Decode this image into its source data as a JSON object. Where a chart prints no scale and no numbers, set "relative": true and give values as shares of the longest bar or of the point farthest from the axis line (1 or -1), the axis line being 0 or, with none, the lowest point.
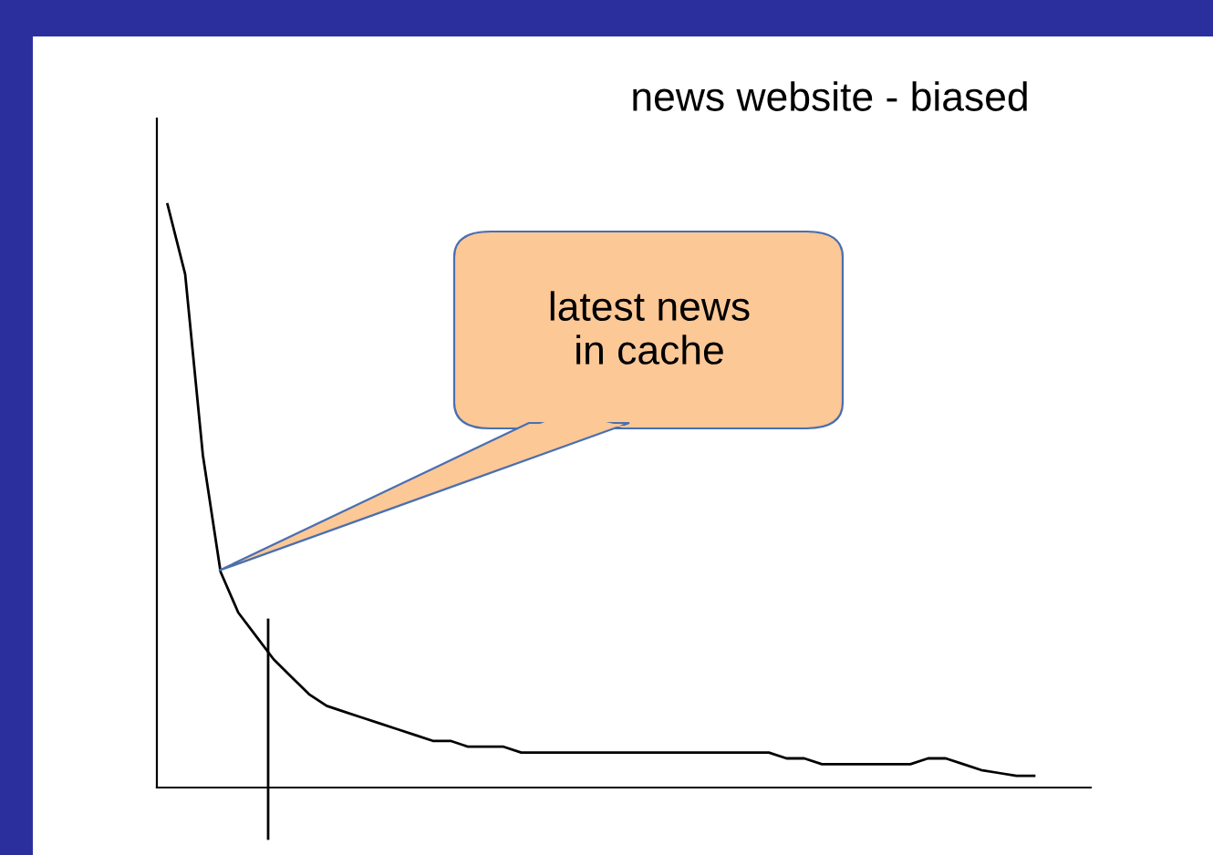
{
  "chart_data": {
    "type": "line",
    "title": "news website - biased",
    "relative": true,
    "categories": [
      null,
      null,
      null,
      null,
      null,
      null,
      null,
      null,
      null,
      null,
      null,
      null,
      null,
      null,
      null,
      null,
      null,
      null,
      null,
      null,
      null,
      null,
      null,
      null,
      null,
      null,
      null,
      null,
      null,
      null,
      null,
      null,
      null,
      null,
      null,
      null,
      null,
      null,
      null,
      null,
      null,
      null,
      null,
      null,
      null,
      null,
      null,
      null,
      null,
      null
    ],
    "series": [
      {
        "color": "#000000",
        "values": [
          1.0,
          0.88,
          0.57,
          0.37,
          0.3,
          0.26,
          0.22,
          0.19,
          0.16,
          0.14,
          0.13,
          0.12,
          0.11,
          0.1,
          0.09,
          0.08,
          0.08,
          0.07,
          0.07,
          0.07,
          0.06,
          0.06,
          0.06,
          0.06,
          0.06,
          0.06,
          0.06,
          0.06,
          0.06,
          0.06,
          0.06,
          0.06,
          0.06,
          0.06,
          0.06,
          0.05,
          0.05,
          0.04,
          0.04,
          0.04,
          0.04,
          0.04,
          0.04,
          0.05,
          0.05,
          0.04,
          0.03,
          0.025,
          0.02,
          0.02
        ]
      }
    ],
    "annotations": [
      "latest news\nin cache"
    ],
    "grid": false,
    "legend": false,
    "marker": "none",
    "line_style": "solid"
  }
}
